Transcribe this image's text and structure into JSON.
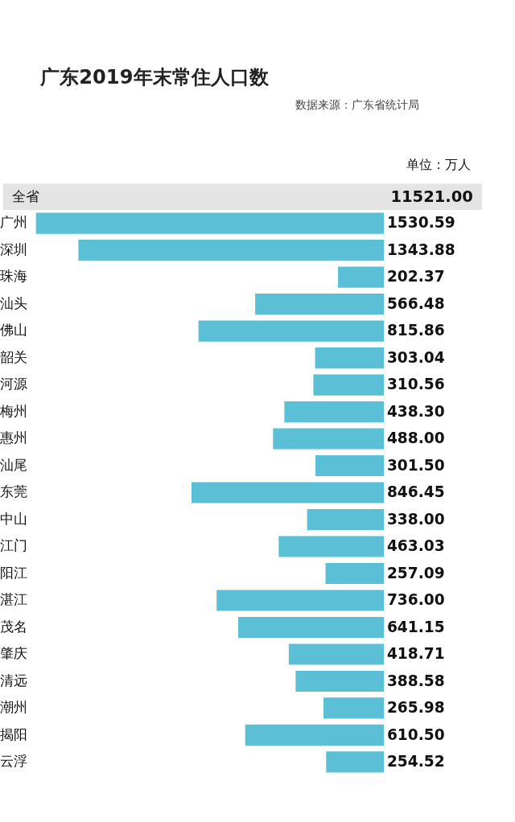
{
  "chart_data": {
    "type": "bar",
    "orientation": "horizontal",
    "title": "广东2019年末常住人口数",
    "subtitle": "数据来源：广东省统计局",
    "annotations": [
      "单位：万人",
      "全省",
      "11521.00"
    ],
    "categories": [
      "广州",
      "深圳",
      "珠海",
      "汕头",
      "佛山",
      "韶关",
      "河源",
      "梅州",
      "惠州",
      "汕尾",
      "东莞",
      "中山",
      "江门",
      "阳江",
      "湛江",
      "茂名",
      "肇庆",
      "清远",
      "潮州",
      "揭阳",
      "云浮"
    ],
    "values": [
      1530.59,
      1343.88,
      202.37,
      566.48,
      815.86,
      303.04,
      310.56,
      438.3,
      488.0,
      301.5,
      846.45,
      338.0,
      463.03,
      257.09,
      736.0,
      641.15,
      418.71,
      388.58,
      265.98,
      610.5,
      254.52
    ],
    "value_labels": [
      "1530.59",
      "1343.88",
      "202.37",
      "566.48",
      "815.86",
      "303.04",
      "310.56",
      "438.30",
      "488.00",
      "301.50",
      "846.45",
      "338.00",
      "463.03",
      "257.09",
      "736.00",
      "641.15",
      "418.71",
      "388.58",
      "265.98",
      "610.50",
      "254.52"
    ],
    "color": "#5bbfd6"
  }
}
